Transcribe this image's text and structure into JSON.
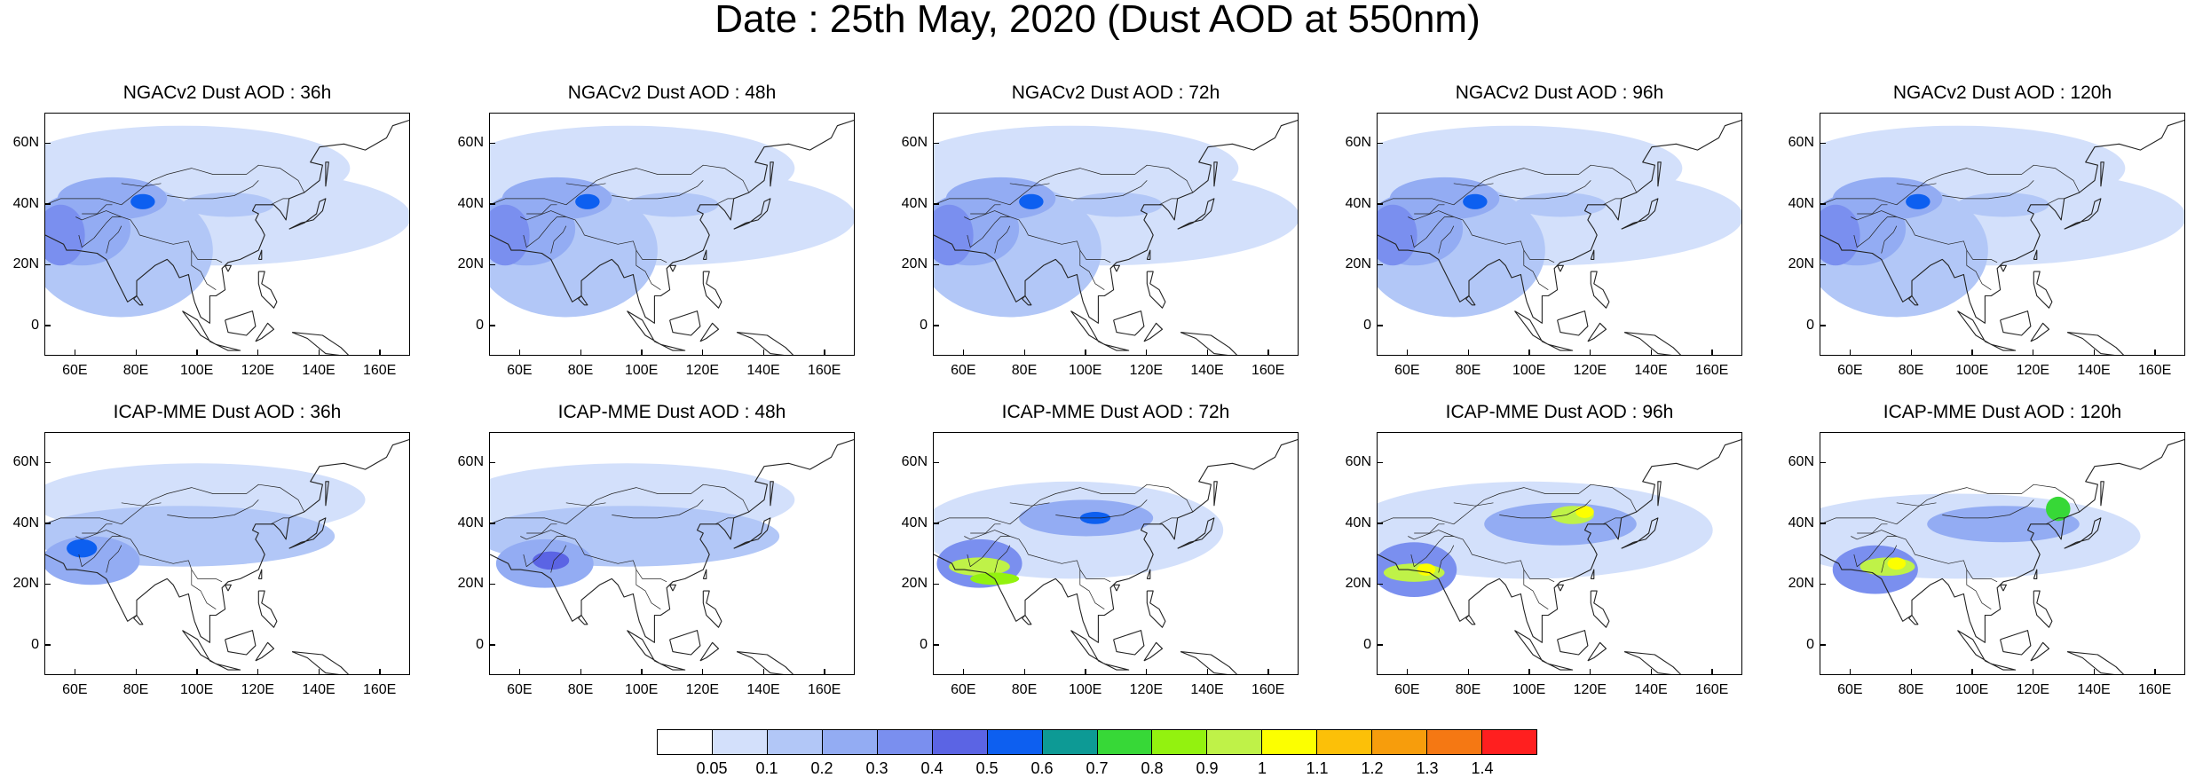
{
  "title": "Date : 25th May, 2020 (Dust AOD at 550nm)",
  "map_extent": {
    "lon_min": 50,
    "lon_max": 170,
    "lat_min": -10,
    "lat_max": 70
  },
  "lon_ticks": [
    "60E",
    "80E",
    "100E",
    "120E",
    "140E",
    "160E"
  ],
  "lat_ticks": [
    "60N",
    "40N",
    "20N",
    "0"
  ],
  "rows": [
    {
      "model": "NGACv2",
      "panels": [
        {
          "title": "NGACv2 Dust AOD : 36h"
        },
        {
          "title": "NGACv2 Dust AOD : 48h"
        },
        {
          "title": "NGACv2 Dust AOD : 72h"
        },
        {
          "title": "NGACv2 Dust AOD : 96h"
        },
        {
          "title": "NGACv2 Dust AOD : 120h"
        }
      ]
    },
    {
      "model": "ICAP-MME",
      "panels": [
        {
          "title": "ICAP-MME Dust AOD : 36h"
        },
        {
          "title": "ICAP-MME Dust AOD : 48h"
        },
        {
          "title": "ICAP-MME Dust AOD : 72h"
        },
        {
          "title": "ICAP-MME Dust AOD : 96h"
        },
        {
          "title": "ICAP-MME Dust AOD : 120h"
        }
      ]
    }
  ],
  "colorbar": {
    "colors": [
      "#ffffff",
      "#d3e0fb",
      "#b2c7f7",
      "#93acf3",
      "#7a8fef",
      "#5b64e4",
      "#0d5ff0",
      "#0d9a95",
      "#37d837",
      "#93f20f",
      "#bff248",
      "#fcff00",
      "#fcc008",
      "#f79d0c",
      "#f57813",
      "#ff1f1f"
    ],
    "labels": [
      "0.05",
      "0.1",
      "0.2",
      "0.3",
      "0.4",
      "0.5",
      "0.6",
      "0.7",
      "0.8",
      "0.9",
      "1",
      "1.1",
      "1.2",
      "1.3",
      "1.4"
    ]
  }
}
